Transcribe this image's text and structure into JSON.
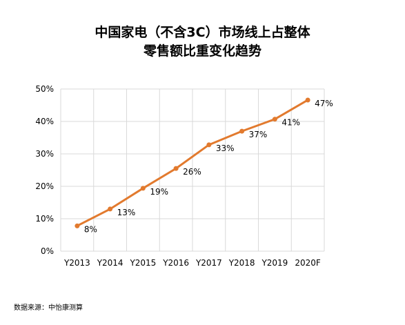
{
  "chart_data": {
    "type": "line",
    "title": [
      "中国家电（不含3C）市场线上占整体",
      "零售额比重变化趋势"
    ],
    "categories": [
      "Y2013",
      "Y2014",
      "Y2015",
      "Y2016",
      "Y2017",
      "Y2018",
      "Y2019",
      "2020F"
    ],
    "series": [
      {
        "values": [
          7.8,
          13.0,
          19.4,
          25.5,
          32.8,
          37.0,
          40.7,
          46.6
        ],
        "data_labels": [
          "8%",
          "13%",
          "19%",
          "26%",
          "33%",
          "37%",
          "41%",
          "47%"
        ]
      }
    ],
    "yticks": [
      "0%",
      "10%",
      "20%",
      "30%",
      "40%",
      "50%"
    ],
    "ytick_values": [
      0,
      10,
      20,
      30,
      40,
      50
    ],
    "ylim": [
      0,
      50
    ],
    "grid": "both",
    "line_color": "#E27A2E",
    "grid_color": "#D9D9D9",
    "legend": "none"
  },
  "source_note": "数据来源：中怡康测算"
}
